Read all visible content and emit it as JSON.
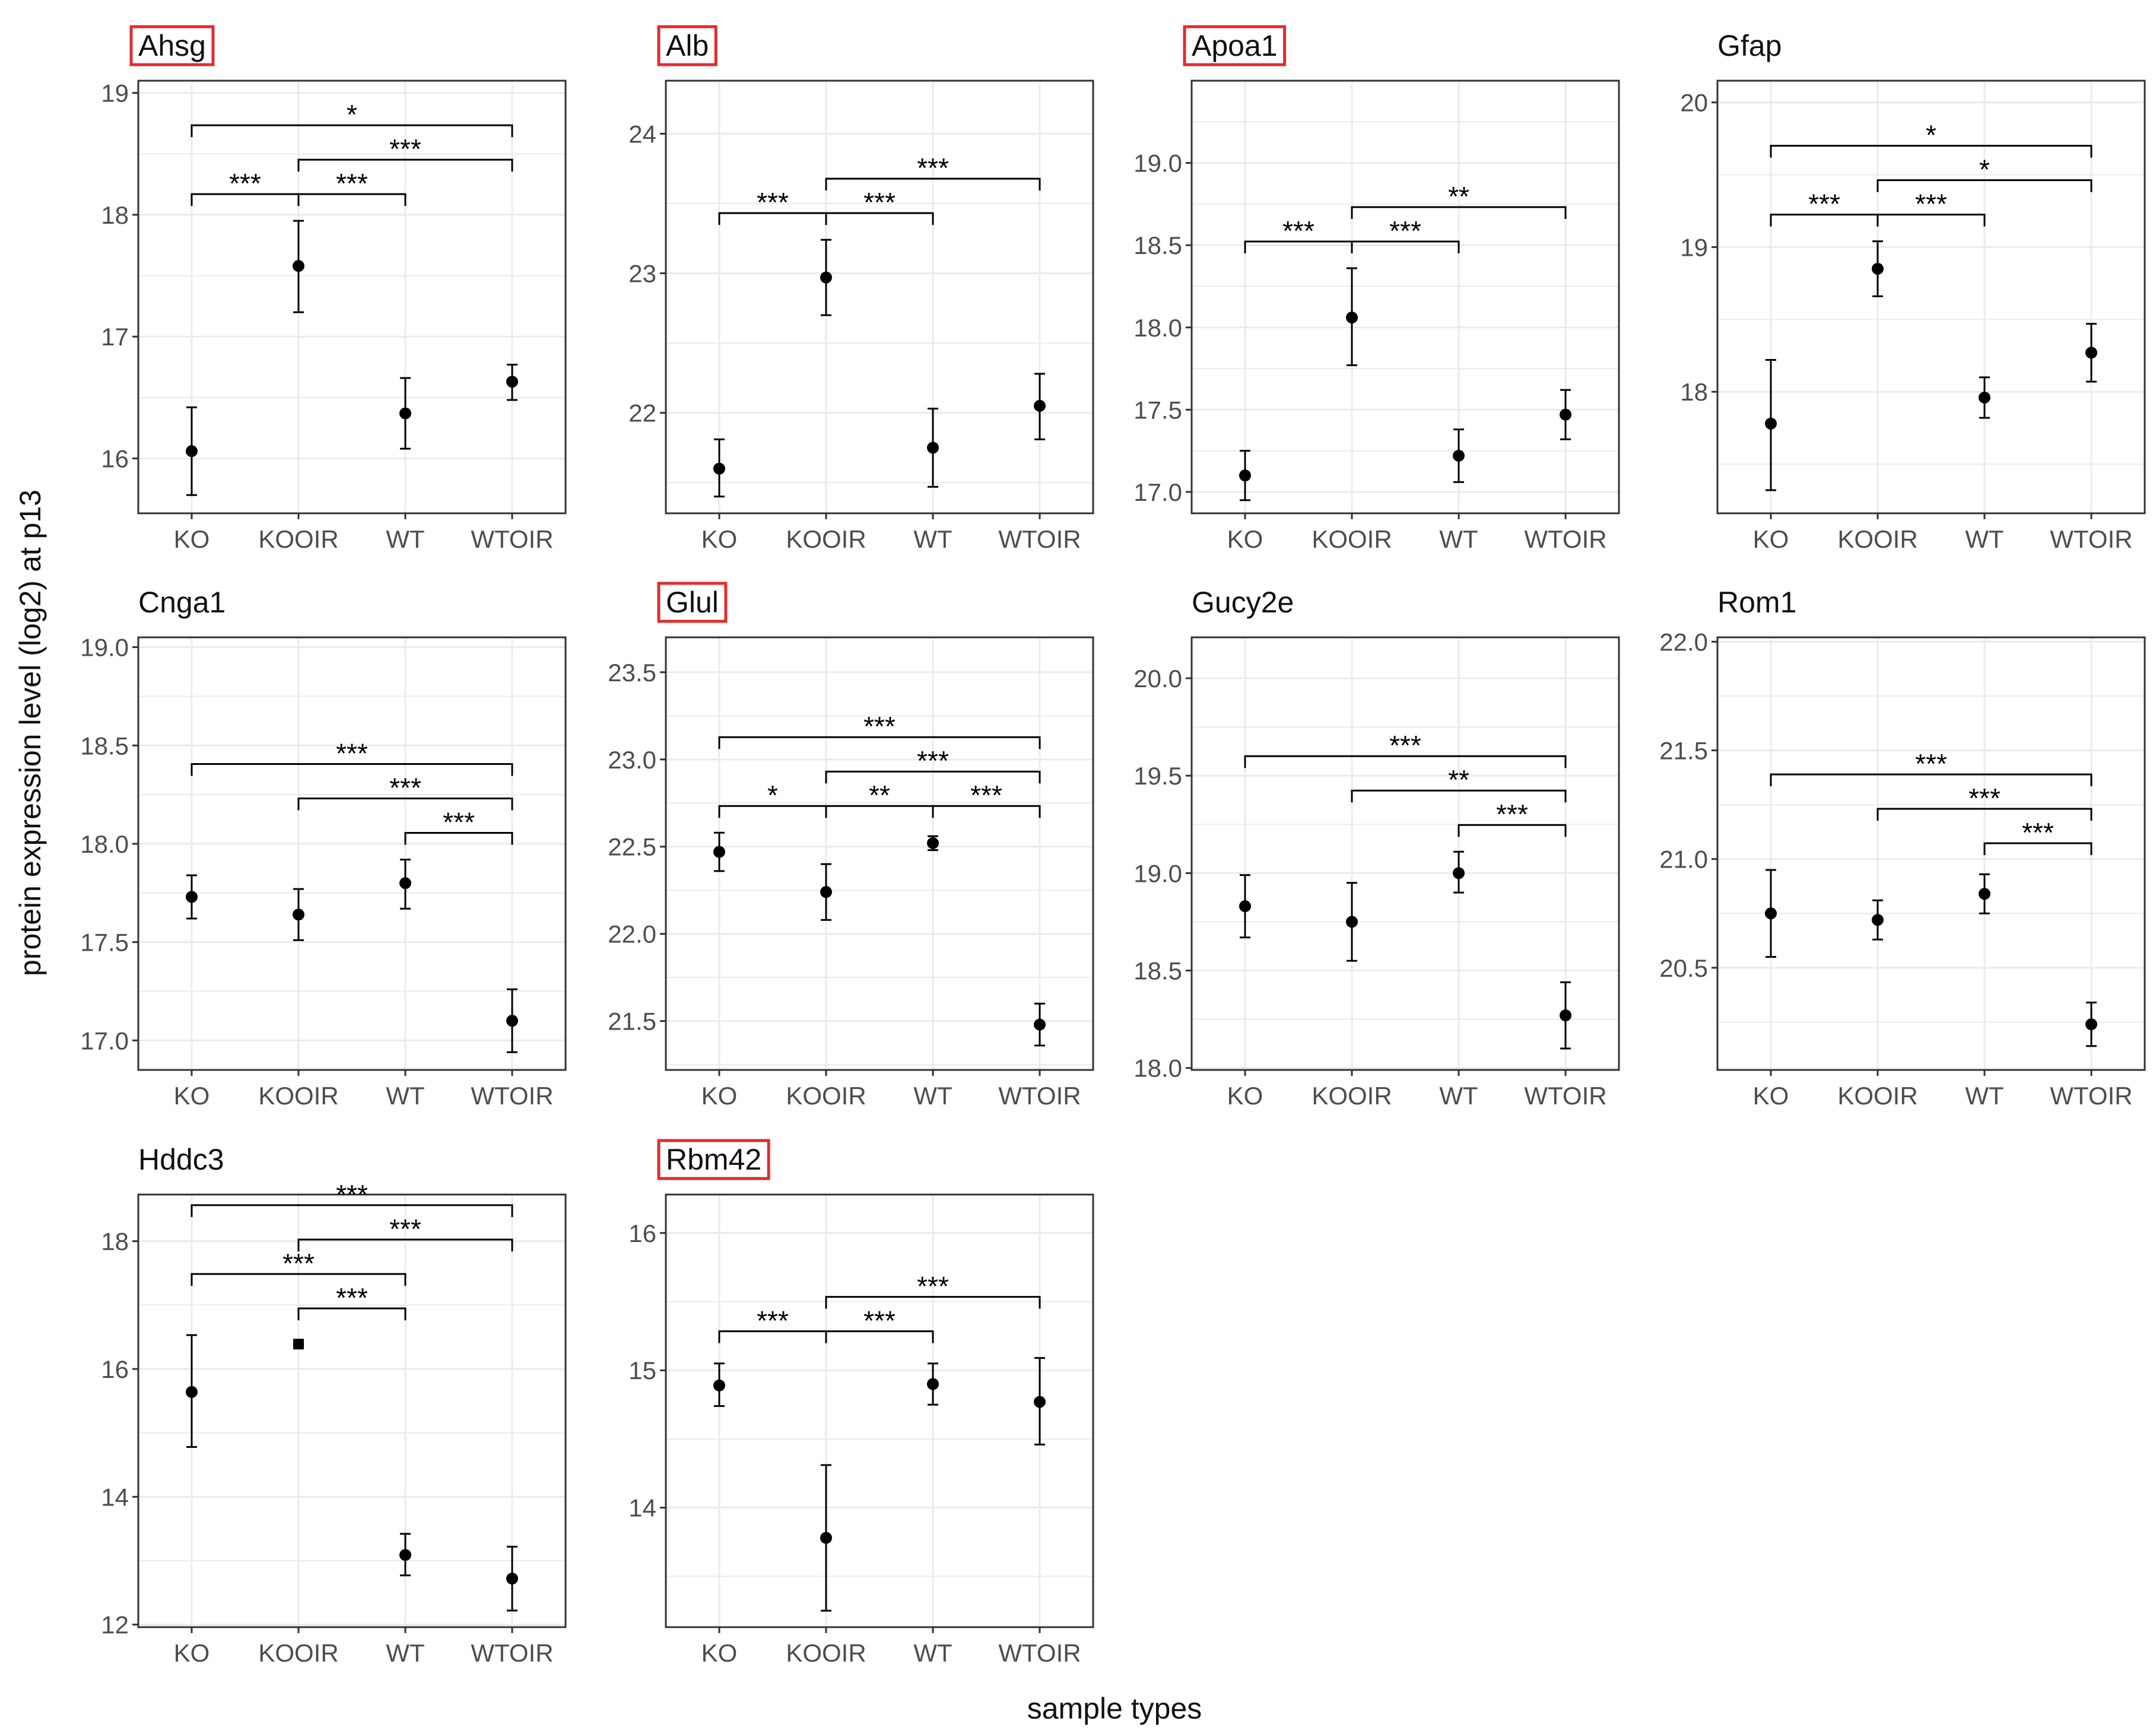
{
  "figure": {
    "ylabel": "protein expression level (log2) at p13",
    "xlabel": "sample types",
    "highlight_color": "#e32b2b",
    "point_color": "#000000",
    "panel_border_color": "#333333",
    "grid_color": "#ebebeb"
  },
  "chart_data": [
    {
      "type": "scatter",
      "title": "Ahsg",
      "highlighted": true,
      "categories": [
        "KO",
        "KOOIR",
        "WT",
        "WTOIR"
      ],
      "ylim": [
        15.55,
        19.1
      ],
      "yticks": [
        16,
        17,
        18,
        19
      ],
      "ytick_labels": [
        "16",
        "17",
        "18",
        "19"
      ],
      "points": [
        {
          "x": "KO",
          "y": 16.06,
          "lo": 15.7,
          "hi": 16.42
        },
        {
          "x": "KOOIR",
          "y": 17.58,
          "lo": 17.2,
          "hi": 17.95
        },
        {
          "x": "WT",
          "y": 16.37,
          "lo": 16.08,
          "hi": 16.66
        },
        {
          "x": "WTOIR",
          "y": 16.63,
          "lo": 16.48,
          "hi": 16.77
        }
      ],
      "comparisons": [
        {
          "from": "KO",
          "to": "WTOIR",
          "label": "*"
        },
        {
          "from": "KOOIR",
          "to": "WTOIR",
          "label": "***"
        },
        {
          "from": "KOOIR",
          "to": "WT",
          "label": "***"
        },
        {
          "from": "KO",
          "to": "KOOIR",
          "label": "***"
        }
      ]
    },
    {
      "type": "scatter",
      "title": "Alb",
      "highlighted": true,
      "categories": [
        "KO",
        "KOOIR",
        "WT",
        "WTOIR"
      ],
      "ylim": [
        21.28,
        24.38
      ],
      "yticks": [
        22,
        23,
        24
      ],
      "ytick_labels": [
        "22",
        "23",
        "24"
      ],
      "points": [
        {
          "x": "KO",
          "y": 21.6,
          "lo": 21.4,
          "hi": 21.81
        },
        {
          "x": "KOOIR",
          "y": 22.97,
          "lo": 22.7,
          "hi": 23.24
        },
        {
          "x": "WT",
          "y": 21.75,
          "lo": 21.47,
          "hi": 22.03
        },
        {
          "x": "WTOIR",
          "y": 22.05,
          "lo": 21.81,
          "hi": 22.28
        }
      ],
      "comparisons": [
        {
          "from": "KOOIR",
          "to": "WTOIR",
          "label": "***"
        },
        {
          "from": "KOOIR",
          "to": "WT",
          "label": "***"
        },
        {
          "from": "KO",
          "to": "KOOIR",
          "label": "***"
        }
      ]
    },
    {
      "type": "scatter",
      "title": "Apoa1",
      "highlighted": true,
      "categories": [
        "KO",
        "KOOIR",
        "WT",
        "WTOIR"
      ],
      "ylim": [
        16.87,
        19.5
      ],
      "yticks": [
        17.0,
        17.5,
        18.0,
        18.5,
        19.0
      ],
      "ytick_labels": [
        "17.0",
        "17.5",
        "18.0",
        "18.5",
        "19.0"
      ],
      "points": [
        {
          "x": "KO",
          "y": 17.1,
          "lo": 16.95,
          "hi": 17.25
        },
        {
          "x": "KOOIR",
          "y": 18.06,
          "lo": 17.77,
          "hi": 18.36
        },
        {
          "x": "WT",
          "y": 17.22,
          "lo": 17.06,
          "hi": 17.38
        },
        {
          "x": "WTOIR",
          "y": 17.47,
          "lo": 17.32,
          "hi": 17.62
        }
      ],
      "comparisons": [
        {
          "from": "KOOIR",
          "to": "WTOIR",
          "label": "**"
        },
        {
          "from": "KOOIR",
          "to": "WT",
          "label": "***"
        },
        {
          "from": "KO",
          "to": "KOOIR",
          "label": "***"
        }
      ]
    },
    {
      "type": "scatter",
      "title": "Gfap",
      "highlighted": false,
      "categories": [
        "KO",
        "KOOIR",
        "WT",
        "WTOIR"
      ],
      "ylim": [
        17.16,
        20.15
      ],
      "yticks": [
        18,
        19,
        20
      ],
      "ytick_labels": [
        "18",
        "19",
        "20"
      ],
      "points": [
        {
          "x": "KO",
          "y": 17.78,
          "lo": 17.32,
          "hi": 18.22
        },
        {
          "x": "KOOIR",
          "y": 18.85,
          "lo": 18.66,
          "hi": 19.04
        },
        {
          "x": "WT",
          "y": 17.96,
          "lo": 17.82,
          "hi": 18.1
        },
        {
          "x": "WTOIR",
          "y": 18.27,
          "lo": 18.07,
          "hi": 18.47
        }
      ],
      "comparisons": [
        {
          "from": "KO",
          "to": "WTOIR",
          "label": "*"
        },
        {
          "from": "KOOIR",
          "to": "WTOIR",
          "label": "*"
        },
        {
          "from": "KOOIR",
          "to": "WT",
          "label": "***"
        },
        {
          "from": "KO",
          "to": "KOOIR",
          "label": "***"
        }
      ]
    },
    {
      "type": "scatter",
      "title": "Cnga1",
      "highlighted": false,
      "categories": [
        "KO",
        "KOOIR",
        "WT",
        "WTOIR"
      ],
      "ylim": [
        16.85,
        19.05
      ],
      "yticks": [
        17.0,
        17.5,
        18.0,
        18.5,
        19.0
      ],
      "ytick_labels": [
        "17.0",
        "17.5",
        "18.0",
        "18.5",
        "19.0"
      ],
      "points": [
        {
          "x": "KO",
          "y": 17.73,
          "lo": 17.62,
          "hi": 17.84
        },
        {
          "x": "KOOIR",
          "y": 17.64,
          "lo": 17.51,
          "hi": 17.77
        },
        {
          "x": "WT",
          "y": 17.8,
          "lo": 17.67,
          "hi": 17.92
        },
        {
          "x": "WTOIR",
          "y": 17.1,
          "lo": 16.94,
          "hi": 17.26
        }
      ],
      "comparisons": [
        {
          "from": "KO",
          "to": "WTOIR",
          "label": "***"
        },
        {
          "from": "KOOIR",
          "to": "WTOIR",
          "label": "***"
        },
        {
          "from": "WT",
          "to": "WTOIR",
          "label": "***"
        }
      ]
    },
    {
      "type": "scatter",
      "title": "Glul",
      "highlighted": true,
      "categories": [
        "KO",
        "KOOIR",
        "WT",
        "WTOIR"
      ],
      "ylim": [
        21.22,
        23.7
      ],
      "yticks": [
        21.5,
        22.0,
        22.5,
        23.0,
        23.5
      ],
      "ytick_labels": [
        "21.5",
        "22.0",
        "22.5",
        "23.0",
        "23.5"
      ],
      "points": [
        {
          "x": "KO",
          "y": 22.47,
          "lo": 22.36,
          "hi": 22.58
        },
        {
          "x": "KOOIR",
          "y": 22.24,
          "lo": 22.08,
          "hi": 22.4
        },
        {
          "x": "WT",
          "y": 22.52,
          "lo": 22.48,
          "hi": 22.56
        },
        {
          "x": "WTOIR",
          "y": 21.48,
          "lo": 21.36,
          "hi": 21.6
        }
      ],
      "comparisons": [
        {
          "from": "KO",
          "to": "WTOIR",
          "label": "***"
        },
        {
          "from": "KOOIR",
          "to": "WTOIR",
          "label": "***"
        },
        {
          "from": "WT",
          "to": "WTOIR",
          "label": "***"
        },
        {
          "from": "KOOIR",
          "to": "WT",
          "label": "**"
        },
        {
          "from": "KO",
          "to": "KOOIR",
          "label": "*"
        }
      ]
    },
    {
      "type": "scatter",
      "title": "Gucy2e",
      "highlighted": false,
      "categories": [
        "KO",
        "KOOIR",
        "WT",
        "WTOIR"
      ],
      "ylim": [
        17.99,
        20.21
      ],
      "yticks": [
        18.0,
        18.5,
        19.0,
        19.5,
        20.0
      ],
      "ytick_labels": [
        "18.0",
        "18.5",
        "19.0",
        "19.5",
        "20.0"
      ],
      "points": [
        {
          "x": "KO",
          "y": 18.83,
          "lo": 18.67,
          "hi": 18.99
        },
        {
          "x": "KOOIR",
          "y": 18.75,
          "lo": 18.55,
          "hi": 18.95
        },
        {
          "x": "WT",
          "y": 19.0,
          "lo": 18.9,
          "hi": 19.11
        },
        {
          "x": "WTOIR",
          "y": 18.27,
          "lo": 18.1,
          "hi": 18.44
        }
      ],
      "comparisons": [
        {
          "from": "KO",
          "to": "WTOIR",
          "label": "***"
        },
        {
          "from": "KOOIR",
          "to": "WTOIR",
          "label": "**"
        },
        {
          "from": "WT",
          "to": "WTOIR",
          "label": "***"
        }
      ]
    },
    {
      "type": "scatter",
      "title": "Rom1",
      "highlighted": false,
      "categories": [
        "KO",
        "KOOIR",
        "WT",
        "WTOIR"
      ],
      "ylim": [
        20.03,
        22.02
      ],
      "yticks": [
        20.5,
        21.0,
        21.5,
        22.0
      ],
      "ytick_labels": [
        "20.5",
        "21.0",
        "21.5",
        "22.0"
      ],
      "points": [
        {
          "x": "KO",
          "y": 20.75,
          "lo": 20.55,
          "hi": 20.95
        },
        {
          "x": "KOOIR",
          "y": 20.72,
          "lo": 20.63,
          "hi": 20.81
        },
        {
          "x": "WT",
          "y": 20.84,
          "lo": 20.75,
          "hi": 20.93
        },
        {
          "x": "WTOIR",
          "y": 20.24,
          "lo": 20.14,
          "hi": 20.34
        }
      ],
      "comparisons": [
        {
          "from": "KO",
          "to": "WTOIR",
          "label": "***"
        },
        {
          "from": "KOOIR",
          "to": "WTOIR",
          "label": "***"
        },
        {
          "from": "WT",
          "to": "WTOIR",
          "label": "***"
        }
      ]
    },
    {
      "type": "scatter",
      "title": "Hddc3",
      "highlighted": false,
      "categories": [
        "KO",
        "KOOIR",
        "WT",
        "WTOIR"
      ],
      "ylim": [
        11.96,
        18.73
      ],
      "yticks": [
        12,
        14,
        16,
        18
      ],
      "ytick_labels": [
        "12",
        "14",
        "16",
        "18"
      ],
      "points": [
        {
          "x": "KO",
          "y": 15.64,
          "lo": 14.78,
          "hi": 16.53
        },
        {
          "x": "KOOIR",
          "y": 16.39,
          "lo": 16.39,
          "hi": 16.39,
          "shape": "square"
        },
        {
          "x": "WT",
          "y": 13.09,
          "lo": 12.77,
          "hi": 13.42
        },
        {
          "x": "WTOIR",
          "y": 12.72,
          "lo": 12.22,
          "hi": 13.22
        }
      ],
      "comparisons": [
        {
          "from": "KO",
          "to": "WTOIR",
          "label": "***"
        },
        {
          "from": "KO",
          "to": "WT",
          "label": "***"
        },
        {
          "from": "KOOIR",
          "to": "WTOIR",
          "label": "***"
        },
        {
          "from": "KOOIR",
          "to": "WT",
          "label": "***"
        }
      ]
    },
    {
      "type": "scatter",
      "title": "Rbm42",
      "highlighted": true,
      "categories": [
        "KO",
        "KOOIR",
        "WT",
        "WTOIR"
      ],
      "ylim": [
        13.13,
        16.28
      ],
      "yticks": [
        14,
        15,
        16
      ],
      "ytick_labels": [
        "14",
        "15",
        "16"
      ],
      "points": [
        {
          "x": "KO",
          "y": 14.89,
          "lo": 14.74,
          "hi": 15.05
        },
        {
          "x": "KOOIR",
          "y": 13.78,
          "lo": 13.25,
          "hi": 14.31
        },
        {
          "x": "WT",
          "y": 14.9,
          "lo": 14.75,
          "hi": 15.05
        },
        {
          "x": "WTOIR",
          "y": 14.77,
          "lo": 14.46,
          "hi": 15.09
        }
      ],
      "comparisons": [
        {
          "from": "KOOIR",
          "to": "WTOIR",
          "label": "***"
        },
        {
          "from": "KOOIR",
          "to": "WT",
          "label": "***"
        },
        {
          "from": "KO",
          "to": "KOOIR",
          "label": "***"
        }
      ]
    }
  ]
}
